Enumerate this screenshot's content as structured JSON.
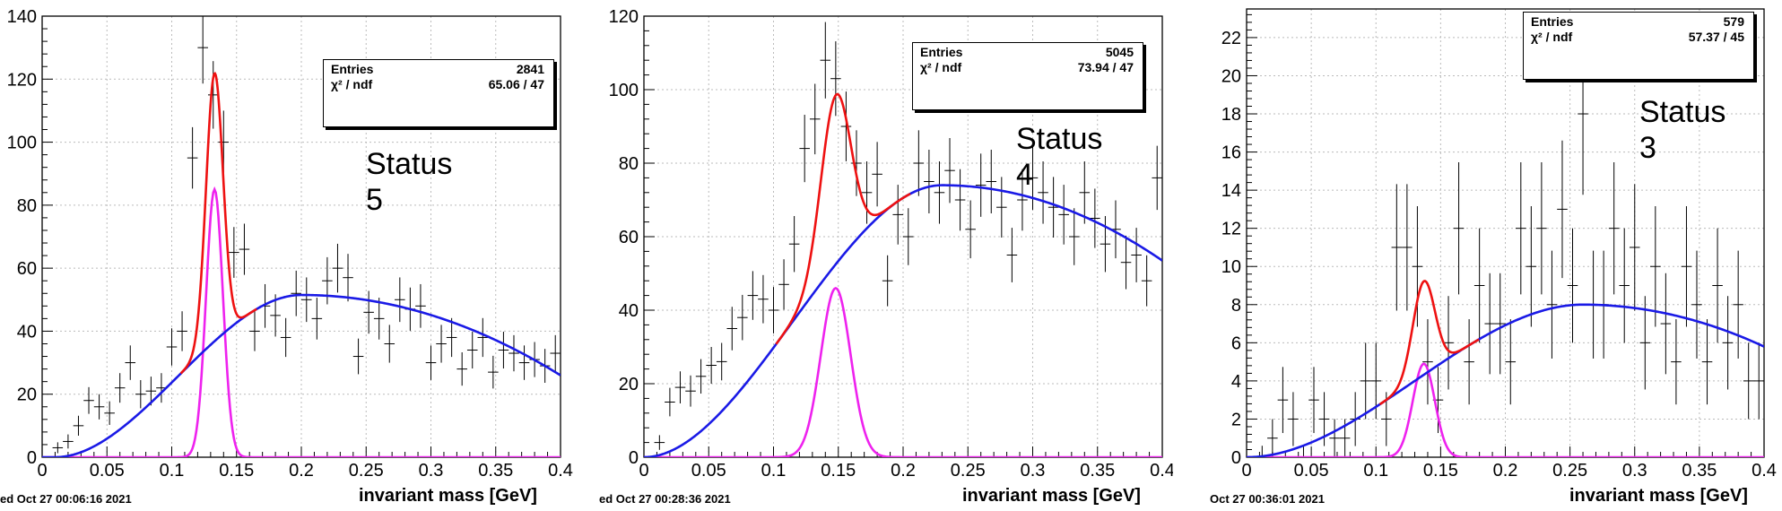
{
  "colors": {
    "fit_total": "#ee1111",
    "signal": "#ee22ee",
    "background": "#1a1ae6",
    "points": "#000000",
    "grid": "#bbbbbb"
  },
  "chart_data": [
    {
      "type": "scatter",
      "xlabel": "invariant mass [GeV]",
      "date": "ed Oct 27 00:06:16 2021",
      "xlim": [
        0,
        0.4
      ],
      "ylim": [
        0,
        140
      ],
      "xticks": [
        "0",
        "0.05",
        "0.1",
        "0.15",
        "0.2",
        "0.25",
        "0.3",
        "0.35",
        "0.4"
      ],
      "yticks": [
        "0",
        "20",
        "40",
        "60",
        "80",
        "100",
        "120",
        "140"
      ],
      "status_line1": "Status",
      "status_line2": "5",
      "stats": {
        "entries_label": "Entries",
        "entries": "2841",
        "chi2_label": "χ² / ndf",
        "chi2": "65.06 / 47"
      },
      "bin_width": 0.008,
      "x": [
        0.012,
        0.02,
        0.028,
        0.036,
        0.044,
        0.052,
        0.06,
        0.068,
        0.076,
        0.084,
        0.092,
        0.1,
        0.108,
        0.116,
        0.124,
        0.132,
        0.14,
        0.148,
        0.156,
        0.164,
        0.172,
        0.18,
        0.188,
        0.196,
        0.204,
        0.212,
        0.22,
        0.228,
        0.236,
        0.244,
        0.252,
        0.26,
        0.268,
        0.276,
        0.284,
        0.292,
        0.3,
        0.308,
        0.316,
        0.324,
        0.332,
        0.34,
        0.348,
        0.356,
        0.364,
        0.372,
        0.38,
        0.388,
        0.396
      ],
      "y": [
        3,
        5,
        10,
        18,
        16,
        14,
        22,
        30,
        20,
        21,
        22,
        35,
        40,
        95,
        130,
        115,
        100,
        65,
        66,
        40,
        48,
        45,
        38,
        52,
        50,
        44,
        56,
        60,
        57,
        32,
        46,
        44,
        36,
        50,
        47,
        48,
        30,
        36,
        38,
        28,
        34,
        38,
        27,
        34,
        33,
        30,
        31,
        29,
        33
      ],
      "signal": {
        "amp": 85,
        "mean": 0.133,
        "sigma": 0.0065
      },
      "bkg": {
        "peak_x": 0.2,
        "peak_y": 51.5,
        "x0": 0.01,
        "end_y": 26
      },
      "series": [
        {
          "name": "total fit"
        },
        {
          "name": "signal"
        },
        {
          "name": "background"
        }
      ]
    },
    {
      "type": "scatter",
      "xlabel": "invariant mass [GeV]",
      "date": "ed Oct 27 00:28:36 2021",
      "xlim": [
        0,
        0.4
      ],
      "ylim": [
        0,
        120
      ],
      "xticks": [
        "0",
        "0.05",
        "0.1",
        "0.15",
        "0.2",
        "0.25",
        "0.3",
        "0.35",
        "0.4"
      ],
      "yticks": [
        "0",
        "20",
        "40",
        "60",
        "80",
        "100",
        "120"
      ],
      "status_line1": "Status",
      "status_line2": "4",
      "stats": {
        "entries_label": "Entries",
        "entries": "5045",
        "chi2_label": "χ² / ndf",
        "chi2": "73.94 / 47"
      },
      "bin_width": 0.008,
      "x": [
        0.012,
        0.02,
        0.028,
        0.036,
        0.044,
        0.052,
        0.06,
        0.068,
        0.076,
        0.084,
        0.092,
        0.1,
        0.108,
        0.116,
        0.124,
        0.132,
        0.14,
        0.148,
        0.156,
        0.164,
        0.172,
        0.18,
        0.188,
        0.196,
        0.204,
        0.212,
        0.22,
        0.228,
        0.236,
        0.244,
        0.252,
        0.26,
        0.268,
        0.276,
        0.284,
        0.292,
        0.3,
        0.308,
        0.316,
        0.324,
        0.332,
        0.34,
        0.348,
        0.356,
        0.364,
        0.372,
        0.38,
        0.388,
        0.396
      ],
      "y": [
        4,
        15,
        19,
        18,
        22,
        25,
        26,
        35,
        38,
        44,
        43,
        40,
        47,
        58,
        84,
        92,
        108,
        103,
        90,
        80,
        72,
        77,
        48,
        66,
        60,
        80,
        75,
        72,
        78,
        70,
        62,
        74,
        75,
        68,
        55,
        70,
        76,
        72,
        68,
        66,
        60,
        72,
        65,
        58,
        62,
        53,
        55,
        48,
        76
      ],
      "signal": {
        "amp": 46,
        "mean": 0.148,
        "sigma": 0.0115
      },
      "bkg": {
        "peak_x": 0.23,
        "peak_y": 74,
        "x0": 0.0,
        "end_y": 53.5
      },
      "series": [
        {
          "name": "total fit"
        },
        {
          "name": "signal"
        },
        {
          "name": "background"
        }
      ]
    },
    {
      "type": "scatter",
      "xlabel": "invariant mass [GeV]",
      "date": "Oct 27 00:36:01 2021",
      "xlim": [
        0,
        0.4
      ],
      "ylim": [
        0,
        23.5
      ],
      "xticks": [
        "0",
        "0.05",
        "0.1",
        "0.15",
        "0.2",
        "0.25",
        "0.3",
        "0.35",
        "0.4"
      ],
      "yticks": [
        "0",
        "2",
        "4",
        "6",
        "8",
        "10",
        "12",
        "14",
        "16",
        "18",
        "20",
        "22"
      ],
      "status_line1": "Status",
      "status_line2": "3",
      "stats": {
        "entries_label": "Entries",
        "entries": "579",
        "chi2_label": "χ² / ndf",
        "chi2": "57.37 / 45"
      },
      "bin_width": 0.008,
      "x": [
        0.012,
        0.02,
        0.028,
        0.036,
        0.044,
        0.052,
        0.06,
        0.068,
        0.076,
        0.084,
        0.092,
        0.1,
        0.108,
        0.116,
        0.124,
        0.132,
        0.14,
        0.148,
        0.156,
        0.164,
        0.172,
        0.18,
        0.188,
        0.196,
        0.204,
        0.212,
        0.22,
        0.228,
        0.236,
        0.244,
        0.252,
        0.26,
        0.268,
        0.276,
        0.284,
        0.292,
        0.3,
        0.308,
        0.316,
        0.324,
        0.332,
        0.34,
        0.348,
        0.356,
        0.364,
        0.372,
        0.38,
        0.388,
        0.396
      ],
      "y": [
        0,
        1,
        3,
        2,
        0,
        3,
        2,
        1,
        1,
        2,
        4,
        4,
        2,
        11,
        11,
        10,
        5,
        3,
        6,
        12,
        5,
        9,
        7,
        7,
        5,
        12,
        10,
        12,
        8,
        13,
        9,
        18,
        8,
        8,
        12,
        9,
        11,
        6,
        10,
        7,
        5,
        10,
        8,
        5,
        9,
        6,
        8,
        4,
        4
      ],
      "signal": {
        "amp": 4.9,
        "mean": 0.137,
        "sigma": 0.0085
      },
      "bkg": {
        "peak_x": 0.26,
        "peak_y": 8,
        "x0": 0.0,
        "end_y": 5.8
      },
      "series": [
        {
          "name": "total fit"
        },
        {
          "name": "signal"
        },
        {
          "name": "background"
        }
      ]
    }
  ]
}
